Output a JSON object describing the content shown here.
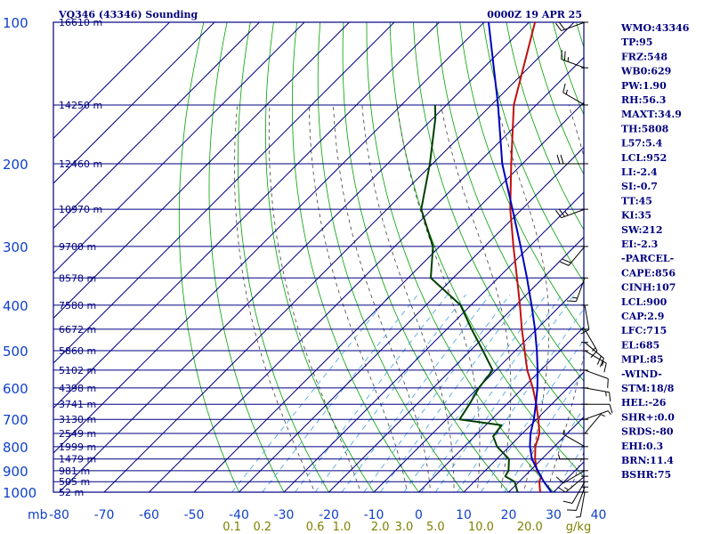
{
  "header": {
    "station": "VQ346 (43346) Sounding",
    "time": "0000Z 19 APR 25"
  },
  "chart_data": {
    "type": "line",
    "subtype": "skew-t log-p sounding",
    "x_axis_label": "mb",
    "x_ticks": [
      -80,
      -70,
      -60,
      -50,
      -40,
      -30,
      -20,
      -10,
      0,
      10,
      20,
      30,
      40
    ],
    "x_tick_labels": [
      "-80",
      "-70",
      "-60",
      "-50",
      "-40",
      "-30",
      "-20",
      "-10",
      "0",
      "10",
      "20",
      "30",
      "40"
    ],
    "pressure_levels": [
      100,
      200,
      300,
      400,
      500,
      600,
      700,
      800,
      900,
      1000
    ],
    "pressure_labels": [
      "100",
      "200",
      "300",
      "400",
      "500",
      "600",
      "700",
      "800",
      "900",
      "1000"
    ],
    "mixing_ratio_labels": [
      "0.1",
      "0.2",
      "0.6",
      "1.0",
      "2.0",
      "3.0",
      "5.0",
      "10.0",
      "20.0",
      "g/kg"
    ],
    "mixing_ratio_values": [
      0.1,
      0.2,
      0.6,
      1.0,
      2.0,
      3.0,
      5.0,
      10.0,
      20.0
    ],
    "height_labels": [
      {
        "p": 100,
        "label": "16610 m"
      },
      {
        "p": 150,
        "label": "14250 m"
      },
      {
        "p": 200,
        "label": "12460 m"
      },
      {
        "p": 250,
        "label": "10970 m"
      },
      {
        "p": 300,
        "label": "9700 m"
      },
      {
        "p": 350,
        "label": "8578 m"
      },
      {
        "p": 400,
        "label": "7580 m"
      },
      {
        "p": 450,
        "label": "6672 m"
      },
      {
        "p": 500,
        "label": "5860 m"
      },
      {
        "p": 550,
        "label": "5102 m"
      },
      {
        "p": 600,
        "label": "4398 m"
      },
      {
        "p": 650,
        "label": "3741 m"
      },
      {
        "p": 700,
        "label": "3130 m"
      },
      {
        "p": 750,
        "label": "2549 m"
      },
      {
        "p": 800,
        "label": "1999 m"
      },
      {
        "p": 850,
        "label": "1479 m"
      },
      {
        "p": 900,
        "label": "981 m"
      },
      {
        "p": 950,
        "label": "505 m"
      },
      {
        "p": 1000,
        "label": "52 m"
      }
    ],
    "series": [
      {
        "role": "temperature",
        "color": "#c01010",
        "points": [
          [
            1000,
            27
          ],
          [
            950,
            24.5
          ],
          [
            925,
            23.7
          ],
          [
            900,
            21.5
          ],
          [
            850,
            18.5
          ],
          [
            800,
            15.8
          ],
          [
            750,
            13.8
          ],
          [
            700,
            10.4
          ],
          [
            650,
            6.6
          ],
          [
            600,
            2.2
          ],
          [
            550,
            -3
          ],
          [
            500,
            -7.9
          ],
          [
            450,
            -13.3
          ],
          [
            400,
            -19.1
          ],
          [
            350,
            -25.8
          ],
          [
            300,
            -33.6
          ],
          [
            250,
            -42.6
          ],
          [
            200,
            -52.5
          ],
          [
            150,
            -65
          ],
          [
            100,
            -78.7
          ]
        ]
      },
      {
        "role": "dewpoint",
        "color": "#004000",
        "points": [
          [
            1000,
            22
          ],
          [
            950,
            19
          ],
          [
            925,
            15.7
          ],
          [
            900,
            15.2
          ],
          [
            850,
            12.7
          ],
          [
            800,
            7.3
          ],
          [
            760,
            4.1
          ],
          [
            750,
            4
          ],
          [
            720,
            3.5
          ],
          [
            700,
            -7.1
          ],
          [
            650,
            -8.3
          ],
          [
            600,
            -9.8
          ],
          [
            550,
            -10.7
          ],
          [
            500,
            -17.2
          ],
          [
            450,
            -24.5
          ],
          [
            400,
            -32.3
          ],
          [
            350,
            -45
          ],
          [
            300,
            -51.5
          ],
          [
            250,
            -62.4
          ],
          [
            200,
            -70.6
          ],
          [
            160,
            -79.5
          ],
          [
            150,
            -82.5
          ]
        ]
      },
      {
        "role": "parcel",
        "color": "#0000c0",
        "points": [
          [
            1000,
            29.5
          ],
          [
            950,
            25.5
          ],
          [
            900,
            21.7
          ],
          [
            850,
            17.8
          ],
          [
            800,
            14.6
          ],
          [
            750,
            11.8
          ],
          [
            700,
            9.4
          ],
          [
            650,
            6.5
          ],
          [
            600,
            3.2
          ],
          [
            550,
            -0.7
          ],
          [
            500,
            -5.2
          ],
          [
            450,
            -10.4
          ],
          [
            400,
            -16.5
          ],
          [
            350,
            -23.6
          ],
          [
            300,
            -32
          ],
          [
            250,
            -42.1
          ],
          [
            200,
            -54.5
          ],
          [
            150,
            -68.5
          ],
          [
            100,
            -89
          ]
        ]
      }
    ],
    "wind_barbs": [
      {
        "p": 1000,
        "dir": 190,
        "spd": 5
      },
      {
        "p": 975,
        "dir": 200,
        "spd": 10
      },
      {
        "p": 950,
        "dir": 210,
        "spd": 10
      },
      {
        "p": 925,
        "dir": 230,
        "spd": 15
      },
      {
        "p": 900,
        "dir": 240,
        "spd": 10
      },
      {
        "p": 850,
        "dir": 270,
        "spd": 5
      },
      {
        "p": 800,
        "dir": 300,
        "spd": 5
      },
      {
        "p": 750,
        "dir": 40,
        "spd": 5
      },
      {
        "p": 700,
        "dir": 70,
        "spd": 5
      },
      {
        "p": 650,
        "dir": 90,
        "spd": 10
      },
      {
        "p": 600,
        "dir": 100,
        "spd": 15
      },
      {
        "p": 550,
        "dir": 110,
        "spd": 10
      },
      {
        "p": 500,
        "dir": 120,
        "spd": 15
      },
      {
        "p": 480,
        "dir": 130,
        "spd": 20
      },
      {
        "p": 450,
        "dir": 150,
        "spd": 15
      },
      {
        "p": 400,
        "dir": 170,
        "spd": 10
      },
      {
        "p": 350,
        "dir": 200,
        "spd": 15
      },
      {
        "p": 300,
        "dir": 220,
        "spd": 20
      },
      {
        "p": 250,
        "dir": 250,
        "spd": 25
      },
      {
        "p": 200,
        "dir": 270,
        "spd": 20
      },
      {
        "p": 150,
        "dir": 300,
        "spd": 15
      },
      {
        "p": 125,
        "dir": 290,
        "spd": 25
      },
      {
        "p": 100,
        "dir": 250,
        "spd": 20
      }
    ]
  },
  "indices": [
    "WMO:43346",
    "TP:95",
    "FRZ:548",
    "WB0:629",
    "PW:1.90",
    "RH:56.3",
    "MAXT:34.9",
    "TH:5808",
    "L57:5.4",
    "LCL:952",
    "LI:-2.4",
    "SI:-0.7",
    "TT:45",
    "KI:35",
    "SW:212",
    "EI:-2.3",
    "-PARCEL-",
    "CAPE:856",
    "CINH:107",
    "LCL:900",
    "CAP:2.9",
    "LFC:715",
    "EL:685",
    "MPL:85",
    "-WIND-",
    "STM:18/8",
    "HEL:-26",
    "SHR+:0.0",
    "SRDS:-80",
    "EHI:0.3",
    "BRN:11.4",
    "BSHR:75"
  ],
  "colors": {
    "grid": "#000080",
    "dry_adiabat": "#00a000",
    "moist_adiabat": "#404040",
    "mixing_ratio": "#40a0e0",
    "axis_labels": "#1040c8"
  }
}
